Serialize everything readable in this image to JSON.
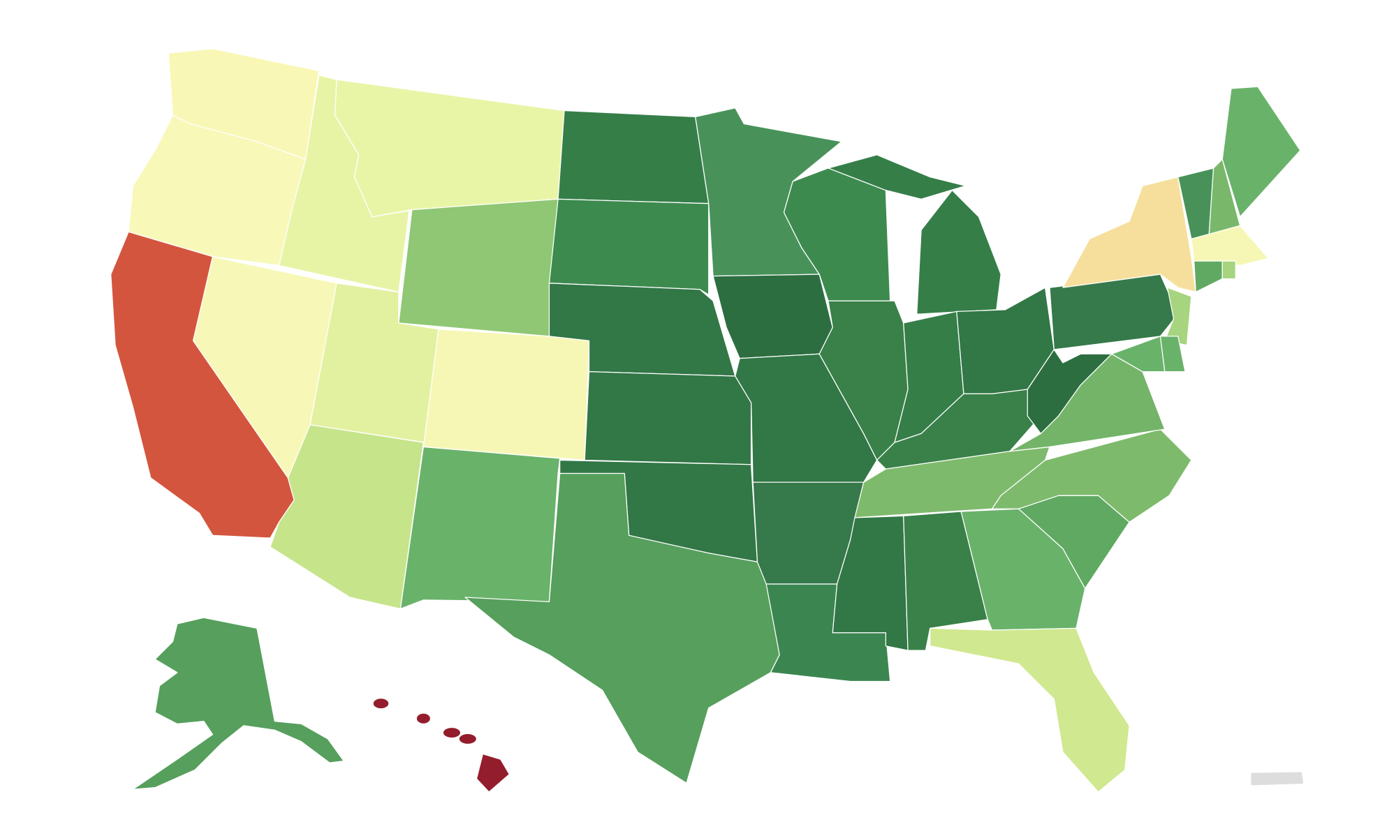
{
  "map": {
    "regions": [
      {
        "color": "#f9f7b5"
      },
      {
        "color": "#f8f8b9"
      },
      {
        "color": "#d4553d"
      },
      {
        "color": "#f7f8b7"
      },
      {
        "color": "#e7f4a6"
      },
      {
        "color": "#e8f5a7"
      },
      {
        "color": "#8fc774"
      },
      {
        "color": "#e2f1a0"
      },
      {
        "color": "#f6f7b5"
      },
      {
        "color": "#c6e48a"
      },
      {
        "color": "#69b26a"
      },
      {
        "color": "#357e48"
      },
      {
        "color": "#3d8a4f"
      },
      {
        "color": "#327746"
      },
      {
        "color": "#327746"
      },
      {
        "color": "#327746"
      },
      {
        "color": "#569f5c"
      },
      {
        "color": "#48925a"
      },
      {
        "color": "#2d6e41"
      },
      {
        "color": "#327746"
      },
      {
        "color": "#36794a"
      },
      {
        "color": "#3b8650"
      },
      {
        "color": "#3d8a4f"
      },
      {
        "color": "#398149"
      },
      {
        "color": "#357e48"
      },
      {
        "color": "#357e48"
      },
      {
        "color": "#327746"
      },
      {
        "color": "#398149"
      },
      {
        "color": "#7eba6c"
      },
      {
        "color": "#327746"
      },
      {
        "color": "#398149"
      },
      {
        "color": "#69b26a"
      },
      {
        "color": "#d0e88f"
      },
      {
        "color": "#60a962"
      },
      {
        "color": "#7eba6c"
      },
      {
        "color": "#73b469"
      },
      {
        "color": "#2d6e41"
      },
      {
        "color": "#36794a"
      },
      {
        "color": "#f6df9d"
      },
      {
        "color": "#a6d47f"
      },
      {
        "color": "#69b26a"
      },
      {
        "color": "#69b26a"
      },
      {
        "color": "#48925a"
      },
      {
        "color": "#79b86b"
      },
      {
        "color": "#69b26a"
      },
      {
        "color": "#f6f7b5"
      },
      {
        "color": "#60a962"
      },
      {
        "color": "#a6d47f"
      },
      {
        "color": "#569f5c"
      },
      {
        "color": "#931d2c"
      },
      {
        "color": "#dddddd"
      }
    ]
  }
}
